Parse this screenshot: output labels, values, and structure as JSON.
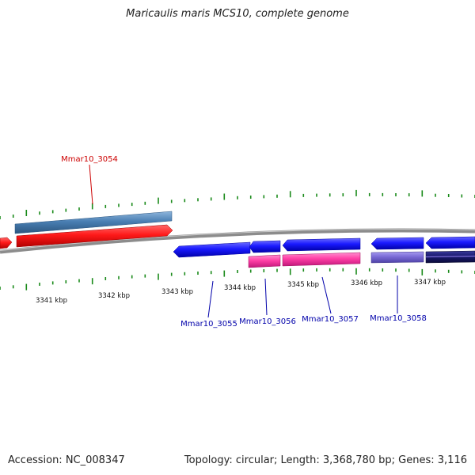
{
  "title": "Maricaulis maris MCS10, complete genome",
  "footer": {
    "accession": "Accession: NC_008347",
    "summary": "Topology: circular; Length: 3,368,780 bp; Genes: 3,116"
  },
  "colors": {
    "backbone": "#8c8c8c",
    "ticks": "#1a8a1a",
    "gene_forward": "#ff1a1a",
    "gene_reverse": "#1a1aff",
    "cds_forward": "#4a7fb3",
    "cds_reverse": "#ff3fa6",
    "cds_light_purple": "#7a6bd6",
    "cds_dark_navy": "#1a1a6e",
    "label_forward": "#cc0000",
    "label_reverse": "#0000aa"
  },
  "axis": {
    "ticks": [
      {
        "label": "3341 kbp"
      },
      {
        "label": "3342 kbp"
      },
      {
        "label": "3343 kbp"
      },
      {
        "label": "3344 kbp"
      },
      {
        "label": "3345 kbp"
      },
      {
        "label": "3346 kbp"
      },
      {
        "label": "3347 kbp"
      }
    ]
  },
  "genes": [
    {
      "label": "Mmar10_3054",
      "strand": "forward"
    },
    {
      "label": "Mmar10_3055",
      "strand": "reverse"
    },
    {
      "label": "Mmar10_3056",
      "strand": "reverse"
    },
    {
      "label": "Mmar10_3057",
      "strand": "reverse"
    },
    {
      "label": "Mmar10_3058",
      "strand": "reverse"
    }
  ]
}
